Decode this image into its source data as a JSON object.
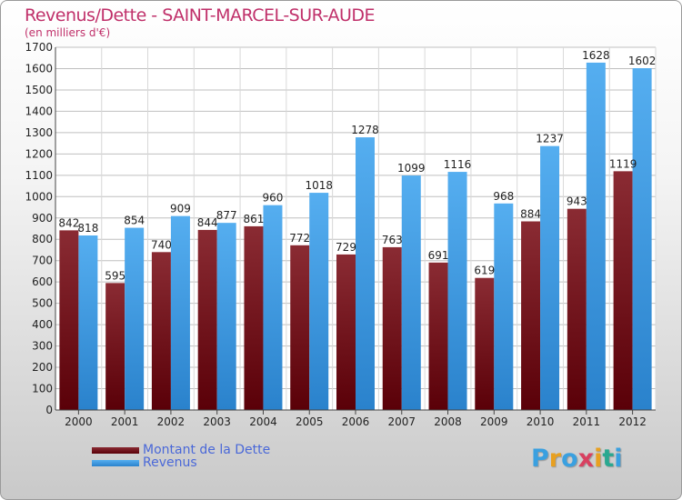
{
  "title": "Revenus/Dette - SAINT-MARCEL-SUR-AUDE",
  "subtitle": "(en milliers d'€)",
  "colors": {
    "dette": "#7a1520",
    "revenus": "#3d9be3"
  },
  "legend": {
    "dette": "Montant de la Dette",
    "revenus": "Revenus"
  },
  "logo": "Proxiti",
  "chart_data": {
    "type": "bar",
    "title": "Revenus/Dette - SAINT-MARCEL-SUR-AUDE",
    "ylabel": "(en milliers d'€)",
    "ylim": [
      0,
      1700
    ],
    "yticks": [
      0,
      100,
      200,
      300,
      400,
      500,
      600,
      700,
      800,
      900,
      1000,
      1100,
      1200,
      1300,
      1400,
      1500,
      1600,
      1700
    ],
    "categories": [
      "2000",
      "2001",
      "2002",
      "2003",
      "2004",
      "2005",
      "2006",
      "2007",
      "2008",
      "2009",
      "2010",
      "2011",
      "2012"
    ],
    "series": [
      {
        "name": "Montant de la Dette",
        "values": [
          842,
          595,
          740,
          844,
          861,
          772,
          729,
          763,
          691,
          619,
          884,
          943,
          1119
        ]
      },
      {
        "name": "Revenus",
        "values": [
          818,
          854,
          909,
          877,
          960,
          1018,
          1278,
          1099,
          1116,
          968,
          1237,
          1628,
          1602
        ]
      }
    ],
    "grid": true,
    "legend_position": "bottom-left"
  }
}
